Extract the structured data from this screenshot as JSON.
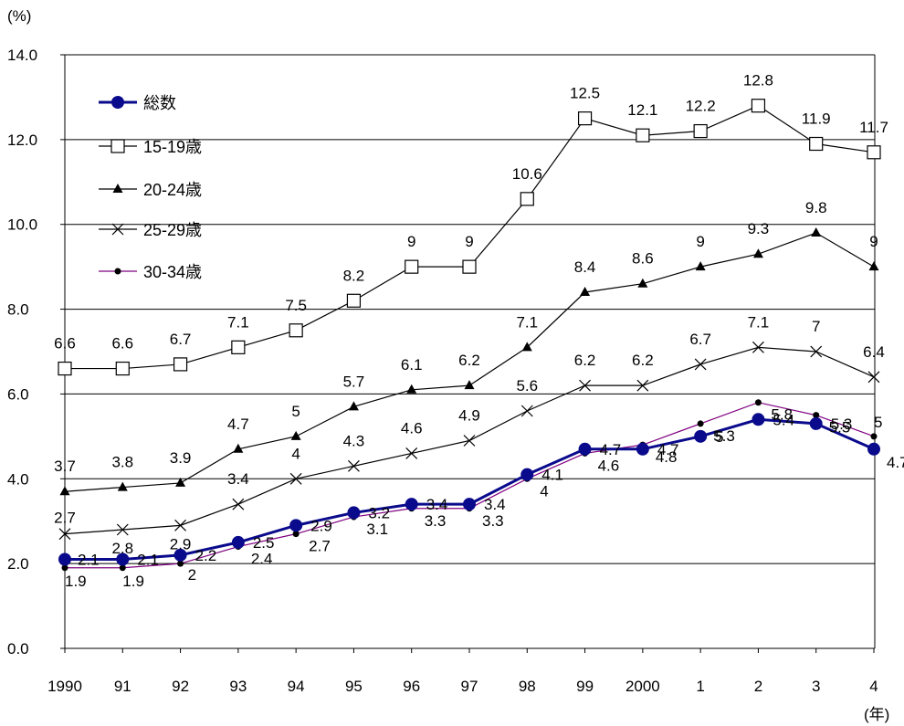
{
  "chart_data": {
    "type": "line",
    "ylabel": "(%)",
    "xlabel": "(年)",
    "ylim": [
      0,
      14
    ],
    "yticks": [
      "0.0",
      "2.0",
      "4.0",
      "6.0",
      "8.0",
      "10.0",
      "12.0",
      "14.0"
    ],
    "categories": [
      "1990",
      "91",
      "92",
      "93",
      "94",
      "95",
      "96",
      "97",
      "98",
      "99",
      "2000",
      "1",
      "2",
      "3",
      "4"
    ],
    "grid": "horizontal",
    "legend_position": "top-left",
    "series": [
      {
        "name": "総数",
        "marker": "circle-large",
        "color": "#0a0a8c",
        "values": [
          2.1,
          2.1,
          2.2,
          2.5,
          2.9,
          3.2,
          3.4,
          3.4,
          4.1,
          4.7,
          4.7,
          5,
          5.4,
          5.3,
          4.7
        ],
        "labels": [
          "2.1",
          "2.1",
          "2.2",
          "2.5",
          "2.9",
          "3.2",
          "3.4",
          "3.4",
          "4.1",
          "4.7",
          "4.7",
          "5",
          "5.4",
          "5.3",
          "4.7"
        ]
      },
      {
        "name": "15-19歳",
        "marker": "square-open",
        "color": "#000000",
        "values": [
          6.6,
          6.6,
          6.7,
          7.1,
          7.5,
          8.2,
          9,
          9,
          10.6,
          12.5,
          12.1,
          12.2,
          12.8,
          11.9,
          11.7
        ],
        "labels": [
          "6.6",
          "6.6",
          "6.7",
          "7.1",
          "7.5",
          "8.2",
          "9",
          "9",
          "10.6",
          "12.5",
          "12.1",
          "12.2",
          "12.8",
          "11.9",
          "11.7"
        ]
      },
      {
        "name": "20-24歳",
        "marker": "triangle",
        "color": "#000000",
        "values": [
          3.7,
          3.8,
          3.9,
          4.7,
          5,
          5.7,
          6.1,
          6.2,
          7.1,
          8.4,
          8.6,
          9,
          9.3,
          9.8,
          9
        ],
        "labels": [
          "3.7",
          "3.8",
          "3.9",
          "4.7",
          "5",
          "5.7",
          "6.1",
          "6.2",
          "7.1",
          "8.4",
          "8.6",
          "9",
          "9.3",
          "9.8",
          "9"
        ]
      },
      {
        "name": "25-29歳",
        "marker": "x",
        "color": "#000000",
        "values": [
          2.7,
          2.8,
          2.9,
          3.4,
          4,
          4.3,
          4.6,
          4.9,
          5.6,
          6.2,
          6.2,
          6.7,
          7.1,
          7,
          6.4
        ],
        "labels": [
          "2.7",
          "2.8",
          "2.9",
          "3.4",
          "4",
          "4.3",
          "4.6",
          "4.9",
          "5.6",
          "6.2",
          "6.2",
          "6.7",
          "7.1",
          "7",
          "6.4"
        ]
      },
      {
        "name": "30-34歳",
        "marker": "dot",
        "color": "#800080",
        "values": [
          1.9,
          1.9,
          2,
          2.4,
          2.7,
          3.1,
          3.3,
          3.3,
          4,
          4.6,
          4.8,
          5.3,
          5.8,
          5.5,
          5
        ],
        "labels": [
          "1.9",
          "1.9",
          "2",
          "2.4",
          "2.7",
          "3.1",
          "3.3",
          "3.3",
          "4",
          "4.6",
          "4.8",
          "5.3",
          "5.8",
          "5.5",
          "5"
        ]
      }
    ]
  }
}
